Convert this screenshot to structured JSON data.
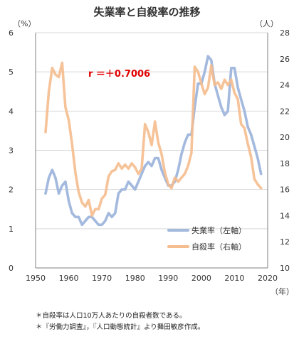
{
  "title": "失業率と自殺率の推移",
  "left_unit": "（%）",
  "right_unit": "（人）",
  "x_unit": "（年）",
  "correlation": "r ＝＋0.7006",
  "notes": [
    "＊自殺率は人口10万人あたりの自殺者数である。",
    "＊『労働力調査』，『人口動態統計』より舞田敏彦作成。"
  ],
  "colors": {
    "unemployment": "#a3b9de",
    "suicide": "#f5bc8e",
    "overlap": "#c2a4a8",
    "correlation": "#e00000",
    "axis": "#7f7f7f",
    "grid": "#d9d9d9"
  },
  "chart_data": {
    "type": "line",
    "x_axis": {
      "min": 1950,
      "max": 2020,
      "ticks": [
        1950,
        1960,
        1970,
        1980,
        1990,
        2000,
        2010,
        2020
      ]
    },
    "y_left": {
      "min": 0,
      "max": 6,
      "ticks": [
        0,
        1,
        2,
        3,
        4,
        5,
        6
      ]
    },
    "y_right": {
      "min": 10,
      "max": 28,
      "ticks": [
        10,
        12,
        14,
        16,
        18,
        20,
        22,
        24,
        26,
        28
      ]
    },
    "legend_position": "bottom-right",
    "series": [
      {
        "name": "失業率（左軸）",
        "axis": "left",
        "x": [
          1953,
          1954,
          1955,
          1956,
          1957,
          1958,
          1959,
          1960,
          1961,
          1962,
          1963,
          1964,
          1965,
          1966,
          1967,
          1968,
          1969,
          1970,
          1971,
          1972,
          1973,
          1974,
          1975,
          1976,
          1977,
          1978,
          1979,
          1980,
          1981,
          1982,
          1983,
          1984,
          1985,
          1986,
          1987,
          1988,
          1989,
          1990,
          1991,
          1992,
          1993,
          1994,
          1995,
          1996,
          1997,
          1998,
          1999,
          2000,
          2001,
          2002,
          2003,
          2004,
          2005,
          2006,
          2007,
          2008,
          2009,
          2010,
          2011,
          2012,
          2013,
          2014,
          2015,
          2016,
          2017,
          2018
        ],
        "values": [
          1.9,
          2.3,
          2.5,
          2.3,
          1.9,
          2.1,
          2.2,
          1.7,
          1.4,
          1.3,
          1.3,
          1.1,
          1.2,
          1.3,
          1.3,
          1.2,
          1.1,
          1.1,
          1.2,
          1.4,
          1.3,
          1.4,
          1.9,
          2.0,
          2.0,
          2.2,
          2.1,
          2.0,
          2.2,
          2.4,
          2.6,
          2.7,
          2.6,
          2.8,
          2.8,
          2.5,
          2.3,
          2.1,
          2.1,
          2.2,
          2.5,
          2.9,
          3.2,
          3.4,
          3.4,
          4.1,
          4.7,
          4.7,
          5.0,
          5.4,
          5.3,
          4.7,
          4.4,
          4.1,
          3.9,
          4.0,
          5.1,
          5.1,
          4.6,
          4.3,
          4.0,
          3.6,
          3.4,
          3.1,
          2.8,
          2.4
        ]
      },
      {
        "name": "自殺率（右軸）",
        "axis": "right",
        "x": [
          1953,
          1954,
          1955,
          1956,
          1957,
          1958,
          1959,
          1960,
          1961,
          1962,
          1963,
          1964,
          1965,
          1966,
          1967,
          1968,
          1969,
          1970,
          1971,
          1972,
          1973,
          1974,
          1975,
          1976,
          1977,
          1978,
          1979,
          1980,
          1981,
          1982,
          1983,
          1984,
          1985,
          1986,
          1987,
          1988,
          1989,
          1990,
          1991,
          1992,
          1993,
          1994,
          1995,
          1996,
          1997,
          1998,
          1999,
          2000,
          2001,
          2002,
          2003,
          2004,
          2005,
          2006,
          2007,
          2008,
          2009,
          2010,
          2011,
          2012,
          2013,
          2014,
          2015,
          2016,
          2017,
          2018
        ],
        "values": [
          20.4,
          23.5,
          25.3,
          24.8,
          24.6,
          25.7,
          22.3,
          21.3,
          19.5,
          17.3,
          15.8,
          15.0,
          14.7,
          15.2,
          14.0,
          14.5,
          14.5,
          15.3,
          15.6,
          17.0,
          17.4,
          17.5,
          18.0,
          17.6,
          17.9,
          17.6,
          18.0,
          17.7,
          17.2,
          17.6,
          21.0,
          20.4,
          19.4,
          21.2,
          19.6,
          18.7,
          17.3,
          16.4,
          16.1,
          16.9,
          16.6,
          16.9,
          17.2,
          17.8,
          18.8,
          25.4,
          25.0,
          24.1,
          23.3,
          23.8,
          25.5,
          24.0,
          24.2,
          23.7,
          24.4,
          24.0,
          24.4,
          23.4,
          22.9,
          21.0,
          20.7,
          19.5,
          18.5,
          16.8,
          16.4,
          16.1
        ]
      }
    ]
  }
}
